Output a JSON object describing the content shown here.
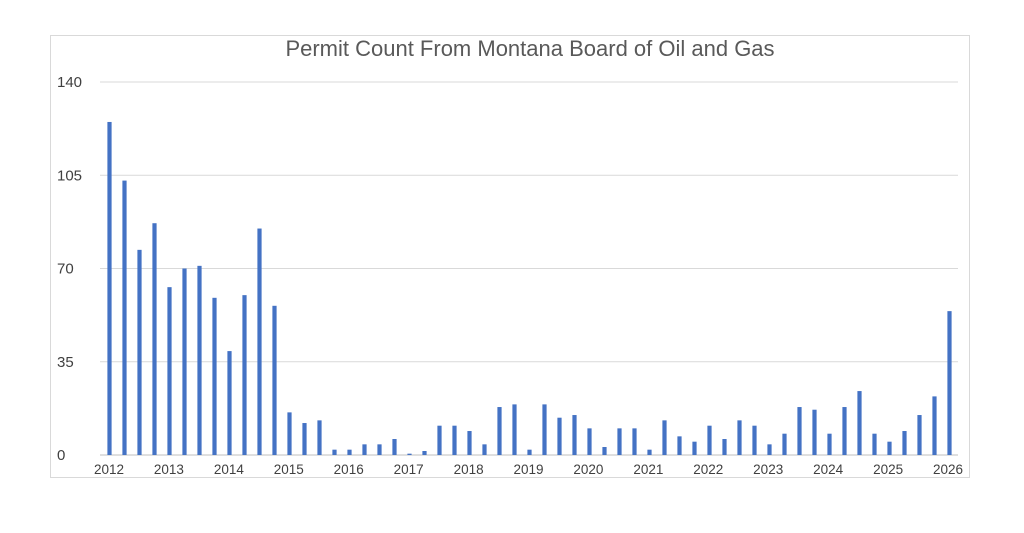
{
  "chart_data": {
    "type": "bar",
    "title": "Permit Count From Montana Board of Oil and Gas",
    "xlabel": "",
    "ylabel": "",
    "ylim": [
      0,
      140
    ],
    "yticks": [
      "0",
      "35",
      "70",
      "105",
      "140"
    ],
    "xticks": [
      "2012",
      "2013",
      "2014",
      "2015",
      "2016",
      "2017",
      "2018",
      "2019",
      "2020",
      "2021",
      "2022",
      "2023",
      "2024",
      "2025",
      "2026"
    ],
    "grid": true,
    "legend": "none",
    "bar_color": "#4472C4",
    "values": [
      125,
      103,
      77,
      87,
      63,
      70,
      71,
      59,
      39,
      60,
      85,
      56,
      16,
      12,
      13,
      2,
      2,
      4,
      4,
      6,
      0.5,
      1.5,
      11,
      11,
      9,
      4,
      18,
      19,
      2,
      19,
      14,
      15,
      10,
      3,
      10,
      10,
      2,
      13,
      7,
      5,
      11,
      6,
      13,
      11,
      4,
      8,
      18,
      17,
      8,
      18,
      24,
      8,
      5,
      9,
      15,
      22,
      54
    ]
  }
}
